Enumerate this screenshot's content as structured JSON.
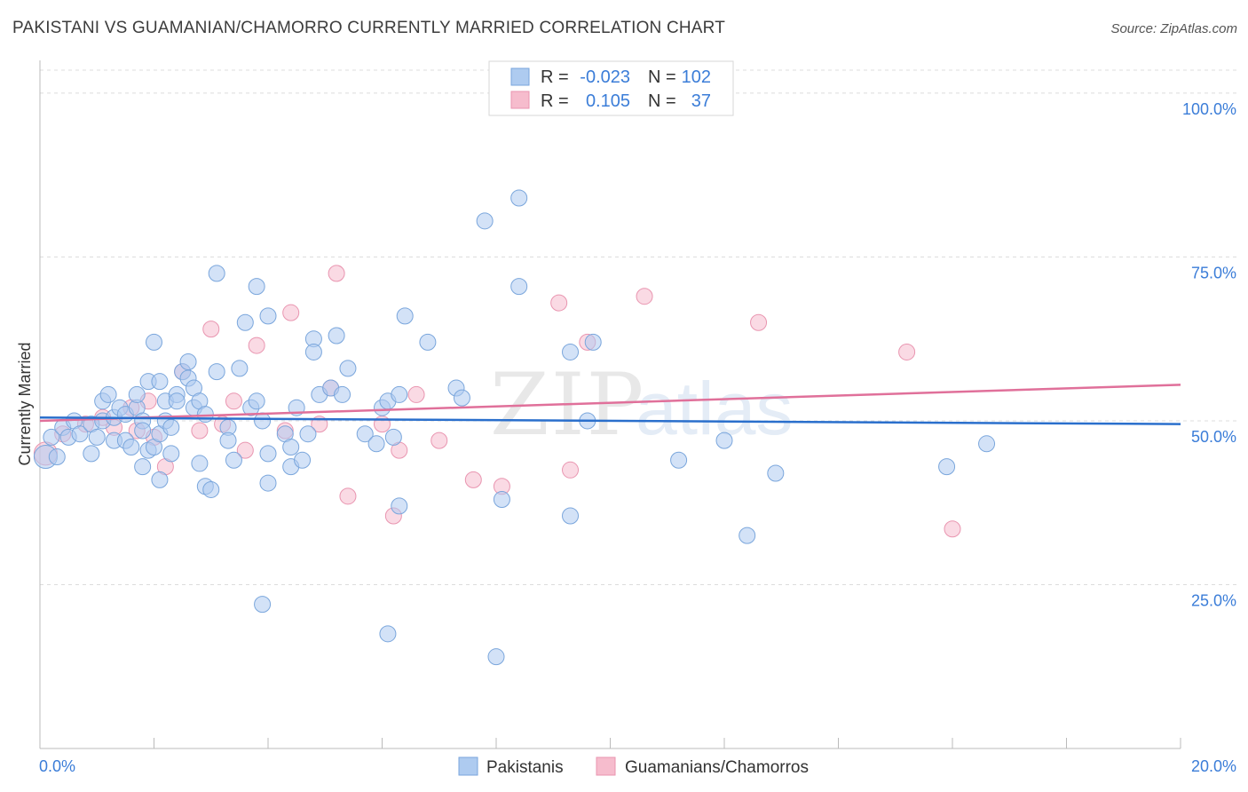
{
  "header": {
    "title": "PAKISTANI VS GUAMANIAN/CHAMORRO CURRENTLY MARRIED CORRELATION CHART",
    "source": "Source: ZipAtlas.com"
  },
  "watermark": {
    "part1": "ZIP",
    "part2": "atlas"
  },
  "colors": {
    "pakistanis_fill": "#aecbf0",
    "pakistanis_stroke": "#7aa6dc",
    "pakistanis_line": "#2a6fcc",
    "guamanians_fill": "#f6bccd",
    "guamanians_stroke": "#e995b0",
    "guamanians_line": "#e0709a",
    "value_text": "#3b7dd8",
    "grid": "#dcdcdc"
  },
  "legend_top": {
    "rows": [
      {
        "r_label": "R =",
        "r_value": "-0.023",
        "n_label": "N =",
        "n_value": "102"
      },
      {
        "r_label": "R =",
        "r_value": "0.105",
        "n_label": "N =",
        "n_value": "37"
      }
    ]
  },
  "chart_data": {
    "type": "scatter",
    "title": "PAKISTANI VS GUAMANIAN/CHAMORRO CURRENTLY MARRIED CORRELATION CHART",
    "xlabel": "",
    "ylabel": "Currently Married",
    "xlim": [
      0,
      20
    ],
    "ylim": [
      0,
      105
    ],
    "x_tick_labels": [
      "0.0%",
      "20.0%"
    ],
    "y_ticks": [
      25,
      50,
      75,
      100
    ],
    "y_tick_labels": [
      "25.0%",
      "50.0%",
      "75.0%",
      "100.0%"
    ],
    "grid": true,
    "legend_position": "bottom-center",
    "series": [
      {
        "name": "Pakistanis",
        "r": -0.023,
        "n": 102,
        "trend": {
          "x": [
            0,
            20
          ],
          "y": [
            50.5,
            49.5
          ]
        },
        "points": [
          [
            0.1,
            44.5
          ],
          [
            0.2,
            47.5
          ],
          [
            0.3,
            44.5
          ],
          [
            0.4,
            49
          ],
          [
            0.5,
            47.5
          ],
          [
            0.6,
            50
          ],
          [
            0.7,
            48
          ],
          [
            0.9,
            49.5
          ],
          [
            0.9,
            45
          ],
          [
            1.0,
            47.5
          ],
          [
            1.1,
            53
          ],
          [
            1.1,
            50
          ],
          [
            1.2,
            54
          ],
          [
            1.3,
            50.5
          ],
          [
            1.3,
            47
          ],
          [
            1.4,
            52
          ],
          [
            1.5,
            51
          ],
          [
            1.5,
            47
          ],
          [
            1.6,
            46
          ],
          [
            1.7,
            52
          ],
          [
            1.7,
            54
          ],
          [
            1.8,
            50
          ],
          [
            1.8,
            48.5
          ],
          [
            1.8,
            43
          ],
          [
            1.9,
            56
          ],
          [
            1.9,
            45.5
          ],
          [
            2.0,
            62
          ],
          [
            2.1,
            56
          ],
          [
            2.0,
            46
          ],
          [
            2.1,
            48
          ],
          [
            2.1,
            41
          ],
          [
            2.2,
            53
          ],
          [
            2.2,
            50
          ],
          [
            2.3,
            49
          ],
          [
            2.3,
            45
          ],
          [
            2.4,
            54
          ],
          [
            2.4,
            53
          ],
          [
            2.5,
            57.5
          ],
          [
            2.6,
            59
          ],
          [
            2.6,
            56.5
          ],
          [
            2.7,
            55
          ],
          [
            2.7,
            52
          ],
          [
            2.8,
            53
          ],
          [
            2.8,
            43.5
          ],
          [
            2.9,
            51
          ],
          [
            2.9,
            40
          ],
          [
            3.0,
            39.5
          ],
          [
            3.1,
            72.5
          ],
          [
            3.1,
            57.5
          ],
          [
            3.3,
            49
          ],
          [
            3.3,
            47
          ],
          [
            3.4,
            44
          ],
          [
            3.5,
            58
          ],
          [
            3.6,
            65
          ],
          [
            3.7,
            52
          ],
          [
            3.8,
            53
          ],
          [
            3.8,
            70.5
          ],
          [
            3.9,
            50
          ],
          [
            4.0,
            66
          ],
          [
            4.0,
            45
          ],
          [
            4.0,
            40.5
          ],
          [
            4.3,
            48
          ],
          [
            4.4,
            46
          ],
          [
            4.4,
            43
          ],
          [
            4.5,
            52
          ],
          [
            4.6,
            44
          ],
          [
            4.7,
            48
          ],
          [
            4.8,
            62.5
          ],
          [
            4.8,
            60.5
          ],
          [
            4.9,
            54
          ],
          [
            5.1,
            55
          ],
          [
            5.2,
            63
          ],
          [
            5.3,
            54
          ],
          [
            5.4,
            58
          ],
          [
            5.7,
            48
          ],
          [
            5.9,
            46.5
          ],
          [
            6.0,
            52
          ],
          [
            6.1,
            53
          ],
          [
            6.2,
            47.5
          ],
          [
            6.3,
            54
          ],
          [
            6.3,
            37
          ],
          [
            6.4,
            66
          ],
          [
            6.8,
            62
          ],
          [
            7.3,
            55
          ],
          [
            7.4,
            53.5
          ],
          [
            7.8,
            80.5
          ],
          [
            8.1,
            38
          ],
          [
            8.4,
            84
          ],
          [
            8.4,
            70.5
          ],
          [
            9.3,
            60.5
          ],
          [
            9.3,
            35.5
          ],
          [
            9.6,
            50
          ],
          [
            9.7,
            62
          ],
          [
            11.2,
            44
          ],
          [
            12.0,
            47
          ],
          [
            12.4,
            32.5
          ],
          [
            12.9,
            42
          ],
          [
            15.9,
            43
          ],
          [
            16.6,
            46.5
          ],
          [
            3.9,
            22
          ],
          [
            6.1,
            17.5
          ],
          [
            8.0,
            14
          ]
        ]
      },
      {
        "name": "Guamanians/Chamorros",
        "r": 0.105,
        "n": 37,
        "trend": {
          "x": [
            0,
            20
          ],
          "y": [
            50.0,
            55.5
          ]
        },
        "points": [
          [
            0.1,
            45
          ],
          [
            0.4,
            48
          ],
          [
            0.8,
            49.5
          ],
          [
            1.1,
            50.5
          ],
          [
            1.3,
            49
          ],
          [
            1.6,
            52
          ],
          [
            1.7,
            48.5
          ],
          [
            1.9,
            53
          ],
          [
            2.0,
            47.5
          ],
          [
            2.2,
            43
          ],
          [
            2.5,
            57.5
          ],
          [
            2.8,
            48.5
          ],
          [
            3.0,
            64
          ],
          [
            3.2,
            49.5
          ],
          [
            3.4,
            53
          ],
          [
            3.6,
            45.5
          ],
          [
            3.8,
            61.5
          ],
          [
            4.3,
            48.5
          ],
          [
            4.4,
            66.5
          ],
          [
            4.9,
            49.5
          ],
          [
            5.1,
            55
          ],
          [
            5.2,
            72.5
          ],
          [
            5.4,
            38.5
          ],
          [
            6.0,
            49.5
          ],
          [
            6.2,
            35.5
          ],
          [
            6.3,
            45.5
          ],
          [
            6.6,
            54
          ],
          [
            7.0,
            47
          ],
          [
            7.6,
            41
          ],
          [
            8.1,
            40
          ],
          [
            9.1,
            68
          ],
          [
            9.3,
            42.5
          ],
          [
            9.6,
            62
          ],
          [
            10.6,
            69
          ],
          [
            12.6,
            65
          ],
          [
            15.2,
            60.5
          ],
          [
            16.0,
            33.5
          ]
        ]
      }
    ]
  }
}
